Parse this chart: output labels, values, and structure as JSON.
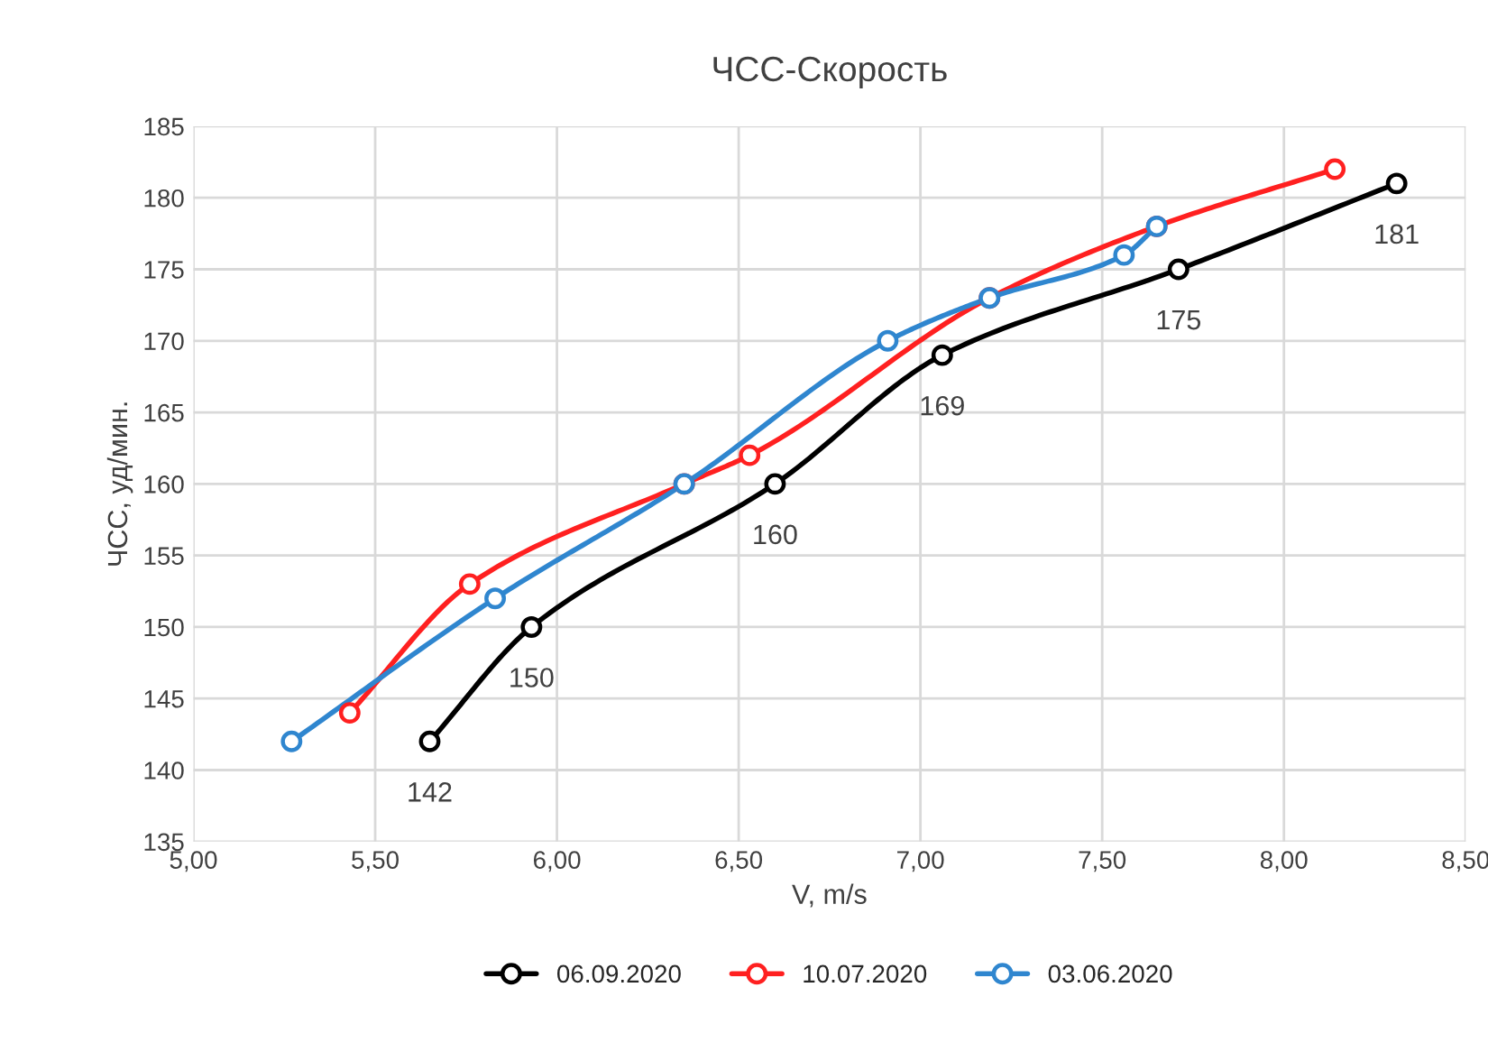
{
  "chart_data": {
    "type": "line",
    "title": "ЧСС-Скорость",
    "xlabel": "V, m/s",
    "ylabel": "ЧСС, уд/мин.",
    "xlim": [
      5.0,
      8.5
    ],
    "xticks": [
      {
        "value": 5.0,
        "label": "5,00"
      },
      {
        "value": 5.5,
        "label": "5,50"
      },
      {
        "value": 6.0,
        "label": "6,00"
      },
      {
        "value": 6.5,
        "label": "6,50"
      },
      {
        "value": 7.0,
        "label": "7,00"
      },
      {
        "value": 7.5,
        "label": "7,50"
      },
      {
        "value": 8.0,
        "label": "8,00"
      },
      {
        "value": 8.5,
        "label": "8,50"
      }
    ],
    "ylim": [
      135,
      185
    ],
    "yticks": [
      135,
      140,
      145,
      150,
      155,
      160,
      165,
      170,
      175,
      180,
      185
    ],
    "grid": true,
    "legend": "bottom",
    "marker": "circle",
    "line_style": "solid",
    "series": [
      {
        "name": "06.09.2020",
        "color": "#000000",
        "x": [
          5.65,
          5.93,
          6.6,
          7.06,
          7.71,
          8.31
        ],
        "values": [
          142,
          150,
          160,
          169,
          175,
          181
        ],
        "value_labels": [
          "142",
          "150",
          "160",
          "169",
          "175",
          "181"
        ]
      },
      {
        "name": "10.07.2020",
        "color": "#ff2020",
        "x": [
          5.43,
          5.76,
          6.35,
          6.53,
          7.19,
          7.65,
          8.14
        ],
        "values": [
          144,
          153,
          160,
          162,
          173,
          178,
          182
        ]
      },
      {
        "name": "03.06.2020",
        "color": "#2f86cf",
        "x": [
          5.27,
          5.83,
          6.35,
          6.91,
          7.19,
          7.56,
          7.65
        ],
        "values": [
          142,
          152,
          160,
          170,
          173,
          176,
          178
        ]
      }
    ]
  }
}
